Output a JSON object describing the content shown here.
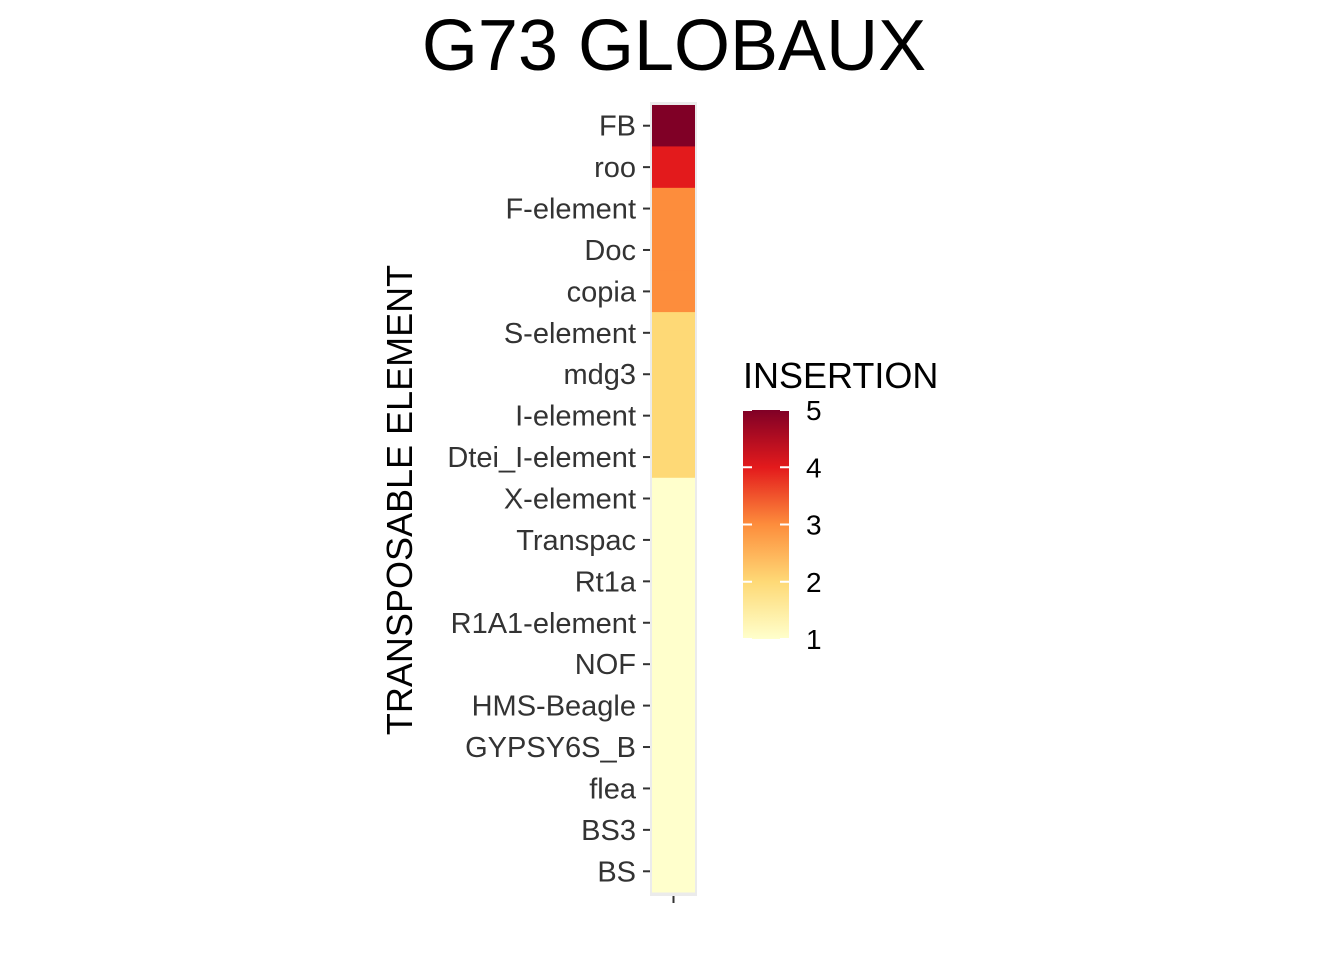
{
  "chart_data": {
    "type": "heatmap",
    "title": "G73 GLOBAUX",
    "xlabel": "",
    "ylabel": "TRANSPOSABLE ELEMENT",
    "categories": [
      "FB",
      "roo",
      "F-element",
      "Doc",
      "copia",
      "S-element",
      "mdg3",
      "I-element",
      "Dtei_I-element",
      "X-element",
      "Transpac",
      "Rt1a",
      "R1A1-element",
      "NOF",
      "HMS-Beagle",
      "GYPSY6S_B",
      "flea",
      "BS3",
      "BS"
    ],
    "values": [
      5,
      4,
      3,
      3,
      3,
      2,
      2,
      2,
      2,
      1,
      1,
      1,
      1,
      1,
      1,
      1,
      1,
      1,
      1
    ],
    "legend": {
      "title": "INSERTION",
      "ticks": [
        "5",
        "4",
        "3",
        "2",
        "1"
      ],
      "range": [
        1,
        5
      ],
      "placement": "right"
    },
    "colors": {
      "scale": [
        "#FFFFCC",
        "#FED976",
        "#FD8D3C",
        "#E31A1C",
        "#800026"
      ],
      "panel_background": "#EBEBEB"
    }
  }
}
